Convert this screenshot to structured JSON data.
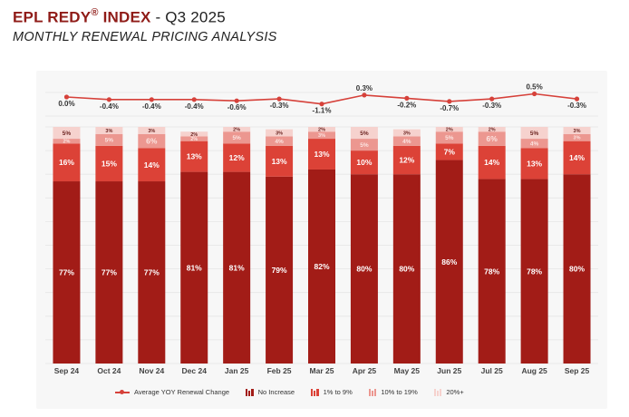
{
  "header": {
    "brand": "EPL REDY",
    "registered": "®",
    "index_word": "INDEX",
    "period": "- Q3 2025",
    "subtitle": "MONTHLY RENEWAL PRICING ANALYSIS"
  },
  "colors": {
    "no_increase": "#a21c17",
    "one_to_nine": "#dc4237",
    "ten_to_nineteen": "#ec9790",
    "twenty_plus": "#f6d2ce",
    "line": "#d6413a",
    "title": "#8f1b17",
    "panel": "#f7f7f7",
    "grid": "#e5e5e5"
  },
  "chart_data": {
    "type": "bar",
    "stacked": true,
    "categories": [
      "Sep 24",
      "Oct 24",
      "Nov 24",
      "Dec 24",
      "Jan 25",
      "Feb 25",
      "Mar 25",
      "Apr 25",
      "May 25",
      "Jun 25",
      "Jul 25",
      "Aug 25",
      "Sep 25"
    ],
    "series": [
      {
        "name": "No Increase",
        "key": "no_increase",
        "values": [
          77,
          77,
          77,
          81,
          81,
          79,
          82,
          80,
          80,
          86,
          78,
          78,
          80
        ]
      },
      {
        "name": "1% to 9%",
        "key": "one_to_nine",
        "values": [
          16,
          15,
          14,
          13,
          12,
          13,
          13,
          10,
          12,
          7,
          14,
          13,
          14
        ]
      },
      {
        "name": "10% to 19%",
        "key": "ten_to_nineteen",
        "values": [
          2,
          5,
          6,
          2,
          5,
          4,
          3,
          5,
          4,
          5,
          6,
          4,
          3
        ]
      },
      {
        "name": "20%+",
        "key": "twenty_plus",
        "values": [
          5,
          3,
          3,
          2,
          2,
          3,
          2,
          5,
          3,
          2,
          2,
          5,
          3
        ]
      }
    ],
    "line": {
      "name": "Average YOY Renewal Change",
      "values": [
        0.0,
        -0.4,
        -0.4,
        -0.4,
        -0.6,
        -0.3,
        -1.1,
        0.3,
        -0.2,
        -0.7,
        -0.3,
        0.5,
        -0.3
      ],
      "labels": [
        "0.0%",
        "-0.4%",
        "-0.4%",
        "-0.4%",
        "-0.6%",
        "-0.3%",
        "-1.1%",
        "0.3%",
        "-0.2%",
        "-0.7%",
        "-0.3%",
        "0.5%",
        "-0.3%"
      ]
    },
    "ylim": [
      0,
      100
    ],
    "units": "%",
    "legend_position": "bottom",
    "grid": true
  },
  "legend": [
    {
      "label": "Average YOY Renewal Change",
      "kind": "line"
    },
    {
      "label": "No Increase",
      "kind": "bar",
      "color_key": "no_increase"
    },
    {
      "label": "1% to 9%",
      "kind": "bar",
      "color_key": "one_to_nine"
    },
    {
      "label": "10% to 19%",
      "kind": "bar",
      "color_key": "ten_to_nineteen"
    },
    {
      "label": "20%+",
      "kind": "bar",
      "color_key": "twenty_plus"
    }
  ]
}
